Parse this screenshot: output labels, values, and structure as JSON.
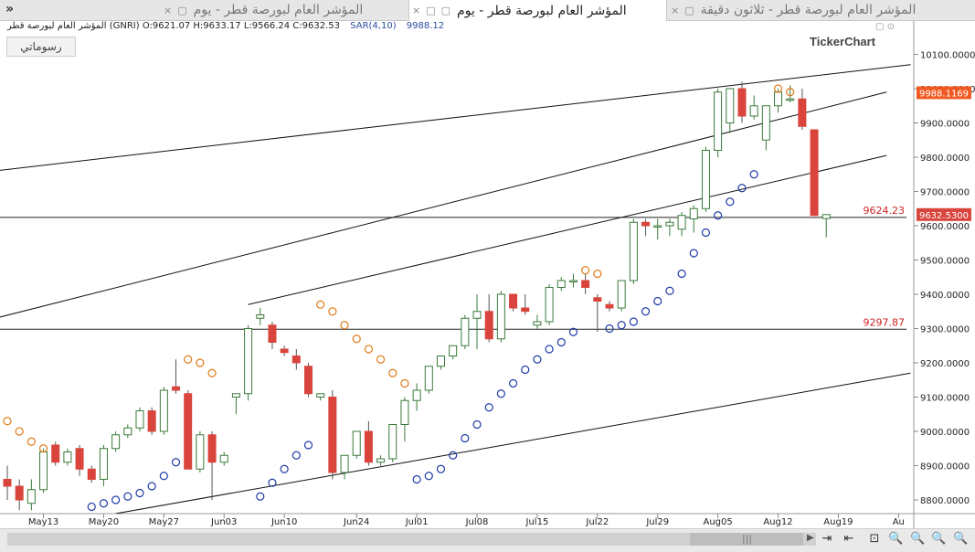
{
  "tabs": [
    {
      "title": "المؤشر العام لبورصة قطر - يوم",
      "active": false
    },
    {
      "title": "المؤشر العام لبورصة قطر - يوم",
      "active": true
    },
    {
      "title": "المؤشر العام لبورصة قطر - ثلاثون دقيقة",
      "active": false
    }
  ],
  "tab_controls": {
    "close": "×",
    "restore": "□",
    "minimize": "▢"
  },
  "chevron": "»",
  "info": {
    "name": "المؤشر العام لبورصة قطر (GNRI)",
    "ohlc": "O:9621.07  H:9633.17  L:9566.24  C:9632.53",
    "sar_label": "SAR(4,10)",
    "sar_value": "9988.12"
  },
  "draw_button": "رسوماتي",
  "logo": "TickerChart",
  "window_buttons": "▢ ⊙",
  "bottom_tools": [
    "⇥",
    "⇤",
    "⊡",
    "🔍",
    "🔍",
    "🔍",
    "🔍",
    "🔍"
  ],
  "colors": {
    "up": "#ffffff",
    "up_border": "#3b7a3b",
    "down": "#d9443c",
    "sar_up": "#1f3ba6",
    "sar_down": "#e07b18",
    "price_tag": "#f05a22",
    "level_text": "#cc2222"
  },
  "chart_data": {
    "type": "candlestick",
    "ylim": [
      8760,
      10160
    ],
    "y_ticks": [
      8800,
      8900,
      9000,
      9100,
      9200,
      9300,
      9400,
      9500,
      9600,
      9700,
      9800,
      9900,
      10000,
      10100
    ],
    "y_tick_labels": [
      "8800.0000",
      "8900.0000",
      "9000.0000",
      "9100.0000",
      "9200.0000",
      "9300.0000",
      "9400.0000",
      "9500.0000",
      "9600.0000",
      "9700.0000",
      "9800.0000",
      "9900.0000",
      "10000.0000",
      "10100.0000"
    ],
    "x_labels": [
      {
        "i": 3,
        "label": "May13"
      },
      {
        "i": 8,
        "label": "May20"
      },
      {
        "i": 13,
        "label": "May27"
      },
      {
        "i": 18,
        "label": "Jun03"
      },
      {
        "i": 23,
        "label": "Jun10"
      },
      {
        "i": 29,
        "label": "Jun24"
      },
      {
        "i": 34,
        "label": "Jul01"
      },
      {
        "i": 39,
        "label": "Jul08"
      },
      {
        "i": 44,
        "label": "Jul15"
      },
      {
        "i": 49,
        "label": "Jul22"
      },
      {
        "i": 54,
        "label": "Jul29"
      },
      {
        "i": 59,
        "label": "Aug05"
      },
      {
        "i": 64,
        "label": "Aug12"
      },
      {
        "i": 69,
        "label": "Aug19"
      },
      {
        "i": 74,
        "label": "Au"
      }
    ],
    "candles": [
      [
        8860,
        8900,
        8800,
        8840
      ],
      [
        8840,
        8860,
        8770,
        8800
      ],
      [
        8790,
        8860,
        8770,
        8830
      ],
      [
        8830,
        8950,
        8820,
        8940
      ],
      [
        8960,
        8970,
        8900,
        8910
      ],
      [
        8910,
        8950,
        8900,
        8940
      ],
      [
        8950,
        8960,
        8870,
        8890
      ],
      [
        8890,
        8900,
        8850,
        8860
      ],
      [
        8860,
        8960,
        8840,
        8950
      ],
      [
        8950,
        9000,
        8940,
        8990
      ],
      [
        8990,
        9020,
        8980,
        9010
      ],
      [
        9010,
        9070,
        9000,
        9060
      ],
      [
        9060,
        9070,
        8990,
        9000
      ],
      [
        9000,
        9130,
        8990,
        9120
      ],
      [
        9130,
        9210,
        9110,
        9120
      ],
      [
        9110,
        9120,
        8890,
        8890
      ],
      [
        8890,
        9000,
        8880,
        8990
      ],
      [
        8990,
        9000,
        8800,
        8910
      ],
      [
        8910,
        8940,
        8900,
        8930
      ],
      [
        9100,
        9110,
        9050,
        9110
      ],
      [
        9110,
        9310,
        9090,
        9300
      ],
      [
        9330,
        9360,
        9310,
        9340
      ],
      [
        9310,
        9320,
        9240,
        9260
      ],
      [
        9240,
        9250,
        9220,
        9230
      ],
      [
        9220,
        9240,
        9180,
        9200
      ],
      [
        9190,
        9200,
        9100,
        9110
      ],
      [
        9100,
        9110,
        9090,
        9110
      ],
      [
        9100,
        9120,
        8860,
        8880
      ],
      [
        8880,
        8930,
        8860,
        8930
      ],
      [
        8930,
        9000,
        8920,
        9000
      ],
      [
        9000,
        9030,
        8900,
        8910
      ],
      [
        8910,
        8930,
        8900,
        8920
      ],
      [
        8920,
        9020,
        8910,
        9020
      ],
      [
        9020,
        9100,
        8970,
        9090
      ],
      [
        9090,
        9140,
        9060,
        9120
      ],
      [
        9120,
        9190,
        9110,
        9190
      ],
      [
        9190,
        9220,
        9180,
        9220
      ],
      [
        9220,
        9250,
        9210,
        9250
      ],
      [
        9250,
        9340,
        9240,
        9330
      ],
      [
        9330,
        9400,
        9240,
        9350
      ],
      [
        9350,
        9400,
        9260,
        9270
      ],
      [
        9270,
        9410,
        9260,
        9400
      ],
      [
        9400,
        9400,
        9350,
        9360
      ],
      [
        9360,
        9400,
        9340,
        9350
      ],
      [
        9310,
        9340,
        9300,
        9320
      ],
      [
        9320,
        9430,
        9310,
        9420
      ],
      [
        9420,
        9450,
        9410,
        9440
      ],
      [
        9440,
        9460,
        9420,
        9440
      ],
      [
        9440,
        9460,
        9400,
        9420
      ],
      [
        9390,
        9400,
        9290,
        9380
      ],
      [
        9370,
        9380,
        9350,
        9360
      ],
      [
        9360,
        9440,
        9350,
        9440
      ],
      [
        9440,
        9620,
        9430,
        9610
      ],
      [
        9610,
        9620,
        9570,
        9600
      ],
      [
        9600,
        9620,
        9560,
        9600
      ],
      [
        9600,
        9620,
        9570,
        9610
      ],
      [
        9590,
        9640,
        9570,
        9630
      ],
      [
        9620,
        9660,
        9580,
        9650
      ],
      [
        9650,
        9830,
        9640,
        9820
      ],
      [
        9820,
        10000,
        9800,
        9990
      ],
      [
        9900,
        10000,
        9870,
        10000
      ],
      [
        10000,
        10020,
        9900,
        9920
      ],
      [
        9920,
        9980,
        9910,
        9950
      ],
      [
        9850,
        9950,
        9820,
        9950
      ],
      [
        9950,
        10000,
        9930,
        9990
      ],
      [
        9970,
        10010,
        9960,
        9970
      ],
      [
        9970,
        10000,
        9880,
        9890
      ],
      [
        9880,
        9880,
        9630,
        9630
      ],
      [
        9621.07,
        9633.17,
        9566.24,
        9632.53
      ]
    ],
    "sar": [
      [
        0,
        9030,
        "d"
      ],
      [
        1,
        9000,
        "d"
      ],
      [
        2,
        8970,
        "d"
      ],
      [
        3,
        8950,
        "d"
      ],
      [
        7,
        8780,
        "u"
      ],
      [
        8,
        8790,
        "u"
      ],
      [
        9,
        8800,
        "u"
      ],
      [
        10,
        8810,
        "u"
      ],
      [
        11,
        8820,
        "u"
      ],
      [
        12,
        8840,
        "u"
      ],
      [
        13,
        8870,
        "u"
      ],
      [
        14,
        8910,
        "u"
      ],
      [
        15,
        9210,
        "d"
      ],
      [
        16,
        9200,
        "d"
      ],
      [
        17,
        9170,
        "d"
      ],
      [
        21,
        8810,
        "u"
      ],
      [
        22,
        8850,
        "u"
      ],
      [
        23,
        8890,
        "u"
      ],
      [
        24,
        8930,
        "u"
      ],
      [
        25,
        8960,
        "u"
      ],
      [
        26,
        9370,
        "d"
      ],
      [
        27,
        9350,
        "d"
      ],
      [
        28,
        9310,
        "d"
      ],
      [
        29,
        9270,
        "d"
      ],
      [
        30,
        9240,
        "d"
      ],
      [
        31,
        9210,
        "d"
      ],
      [
        32,
        9170,
        "d"
      ],
      [
        33,
        9140,
        "d"
      ],
      [
        34,
        8860,
        "u"
      ],
      [
        35,
        8870,
        "u"
      ],
      [
        36,
        8890,
        "u"
      ],
      [
        37,
        8930,
        "u"
      ],
      [
        38,
        8980,
        "u"
      ],
      [
        39,
        9020,
        "u"
      ],
      [
        40,
        9070,
        "u"
      ],
      [
        41,
        9110,
        "u"
      ],
      [
        42,
        9140,
        "u"
      ],
      [
        43,
        9180,
        "u"
      ],
      [
        44,
        9210,
        "u"
      ],
      [
        45,
        9240,
        "u"
      ],
      [
        46,
        9260,
        "u"
      ],
      [
        47,
        9290,
        "u"
      ],
      [
        48,
        9470,
        "d"
      ],
      [
        49,
        9460,
        "d"
      ],
      [
        50,
        9300,
        "u"
      ],
      [
        51,
        9310,
        "u"
      ],
      [
        52,
        9320,
        "u"
      ],
      [
        53,
        9350,
        "u"
      ],
      [
        54,
        9380,
        "u"
      ],
      [
        55,
        9410,
        "u"
      ],
      [
        56,
        9460,
        "u"
      ],
      [
        57,
        9520,
        "u"
      ],
      [
        58,
        9580,
        "u"
      ],
      [
        59,
        9630,
        "u"
      ],
      [
        60,
        9670,
        "u"
      ],
      [
        61,
        9710,
        "u"
      ],
      [
        62,
        9750,
        "u"
      ],
      [
        64,
        10000,
        "d"
      ],
      [
        65,
        9990,
        "d"
      ]
    ],
    "h_lines": [
      {
        "value": 9624.23,
        "label": "9624.23"
      },
      {
        "value": 9297.87,
        "label": "9297.87"
      }
    ],
    "trend_lines": [
      {
        "from": [
          -1,
          9760
        ],
        "to": [
          75,
          10070
        ]
      },
      {
        "from": [
          -1,
          9330
        ],
        "to": [
          73,
          9990
        ]
      },
      {
        "from": [
          20,
          9370
        ],
        "to": [
          73,
          9805
        ]
      },
      {
        "from": [
          9,
          8760
        ],
        "to": [
          75,
          9170
        ]
      }
    ],
    "price_tags": [
      {
        "value": 9988.1169,
        "label": "9988.1169",
        "color": "orange"
      },
      {
        "value": 9632.53,
        "label": "9632.5300",
        "color": "red"
      }
    ]
  }
}
